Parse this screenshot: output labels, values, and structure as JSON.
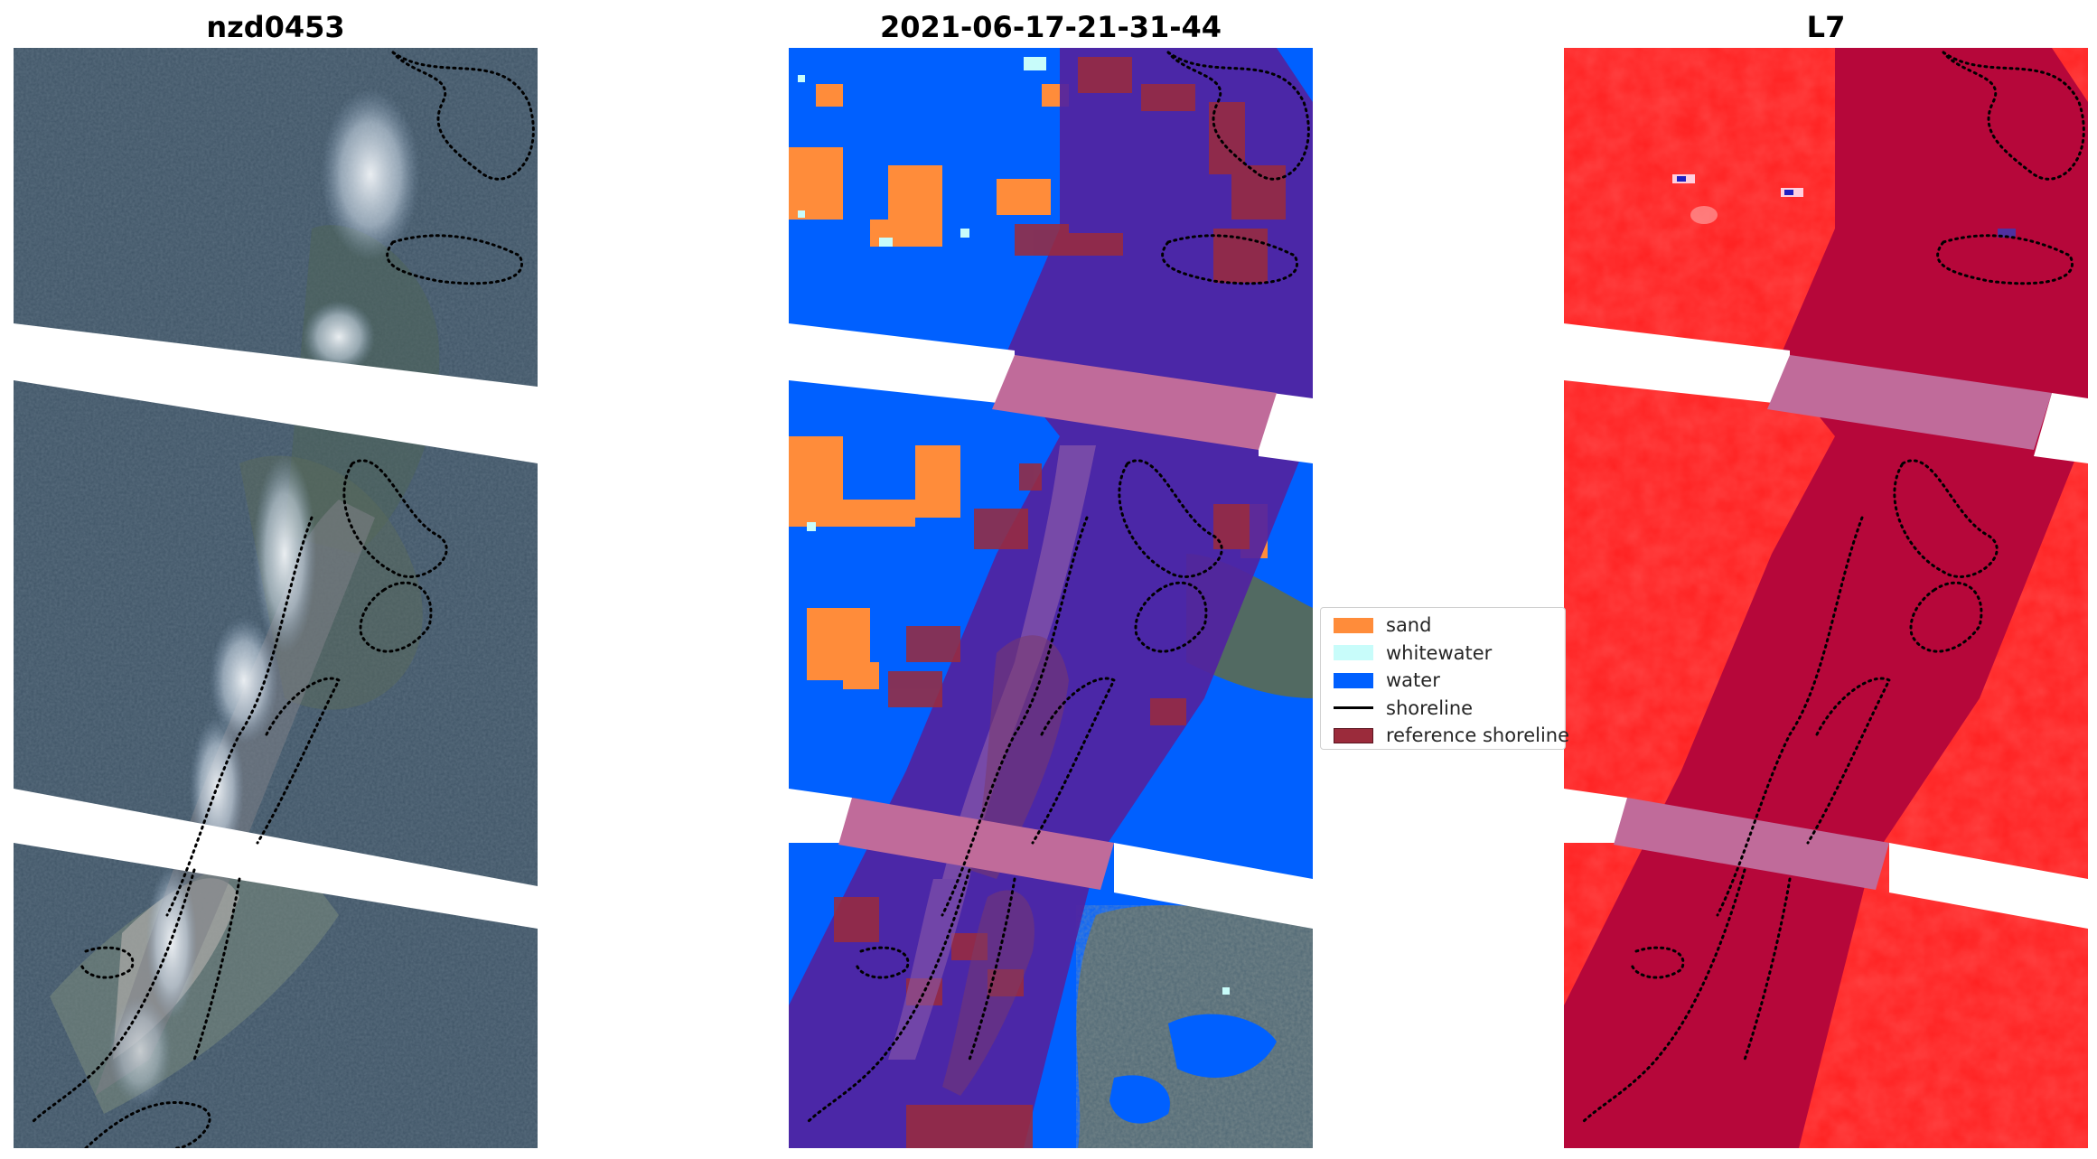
{
  "panels": [
    {
      "title": "nzd0453"
    },
    {
      "title": "2021-06-17-21-31-44"
    },
    {
      "title": "L7"
    }
  ],
  "legend": {
    "items": [
      {
        "label": "sand",
        "color": "#ff8c3a",
        "kind": "patch"
      },
      {
        "label": "whitewater",
        "color": "#c8fcfa",
        "kind": "patch"
      },
      {
        "label": "water",
        "color": "#0060ff",
        "kind": "patch"
      },
      {
        "label": "shoreline",
        "color": "#000000",
        "kind": "line"
      },
      {
        "label": "reference shoreline",
        "color": "#9b2b3b",
        "kind": "patch"
      }
    ]
  },
  "colors": {
    "imagery_base": "#3e5265",
    "imagery_vegetation": "#566a57",
    "imagery_cloud": "#e8edf2",
    "classified_water": "#0060ff",
    "classified_sand": "#ff8c3a",
    "classified_whitewater": "#c8fcfa",
    "classified_overlay": "#5122a0",
    "l7_red": "#ff1f1f",
    "l7_dark": "#b6073a",
    "gap_band": "#c06b9a"
  }
}
